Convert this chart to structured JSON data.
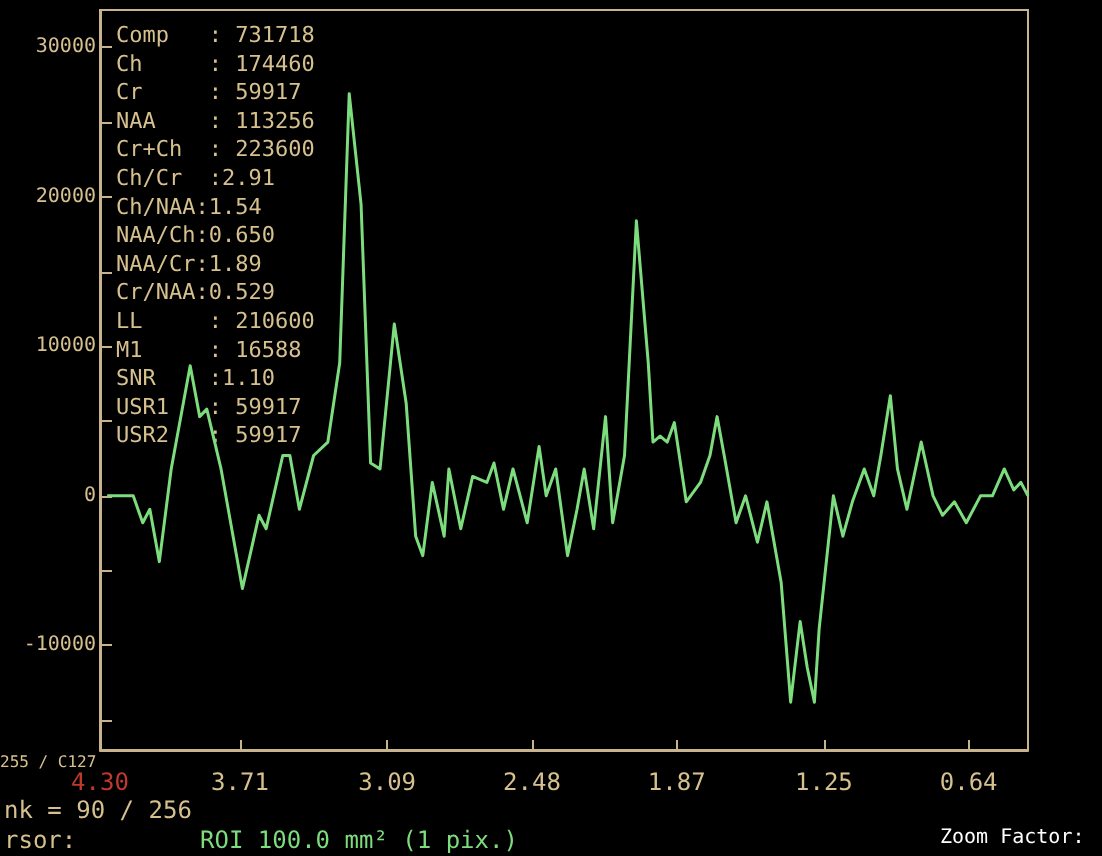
{
  "chart_data": {
    "type": "line",
    "x": [
      4.27,
      4.16,
      4.12,
      4.09,
      4.05,
      4.0,
      3.92,
      3.88,
      3.85,
      3.79,
      3.7,
      3.63,
      3.6,
      3.53,
      3.5,
      3.46,
      3.4,
      3.34,
      3.29,
      3.25,
      3.2,
      3.16,
      3.12,
      3.06,
      3.01,
      2.97,
      2.94,
      2.9,
      2.85,
      2.83,
      2.78,
      2.73,
      2.67,
      2.64,
      2.6,
      2.56,
      2.5,
      2.45,
      2.42,
      2.38,
      2.33,
      2.29,
      2.26,
      2.22,
      2.17,
      2.14,
      2.09,
      2.04,
      1.99,
      1.97,
      1.94,
      1.91,
      1.88,
      1.83,
      1.77,
      1.73,
      1.7,
      1.67,
      1.62,
      1.58,
      1.53,
      1.49,
      1.43,
      1.39,
      1.35,
      1.32,
      1.29,
      1.27,
      1.21,
      1.17,
      1.13,
      1.08,
      1.04,
      1.01,
      0.97,
      0.94,
      0.9,
      0.84,
      0.79,
      0.75,
      0.7,
      0.65,
      0.59,
      0.54,
      0.49,
      0.45,
      0.42,
      0.39
    ],
    "series": [
      {
        "color": "#7ddc7d",
        "values": [
          0,
          0,
          -1800,
          -900,
          -4400,
          1800,
          8700,
          5300,
          5800,
          1800,
          -6200,
          -1300,
          -2200,
          2700,
          2700,
          -900,
          2700,
          3600,
          8900,
          26900,
          19500,
          2200,
          1800,
          11500,
          6200,
          -2700,
          -4000,
          900,
          -2700,
          1800,
          -2200,
          1300,
          900,
          2200,
          -900,
          1800,
          -1800,
          3300,
          0,
          1800,
          -4000,
          -900,
          1800,
          -2200,
          5300,
          -1800,
          2700,
          18400,
          8900,
          3600,
          4000,
          3600,
          4900,
          -400,
          900,
          2700,
          5300,
          2700,
          -1800,
          0,
          -3100,
          -400,
          -5800,
          -13800,
          -8400,
          -11500,
          -13800,
          -8900,
          0,
          -2700,
          -400,
          1800,
          0,
          2700,
          6700,
          1800,
          -900,
          3600,
          0,
          -1300,
          -400,
          -1800,
          0,
          0,
          1800,
          400,
          900,
          0
        ]
      }
    ],
    "xlim": [
      4.3,
      0.39
    ],
    "xticks": [
      {
        "value": 4.3,
        "label": "4.30"
      },
      3.71,
      3.09,
      2.48,
      1.87,
      1.25,
      0.64
    ],
    "ylim": [
      -17000,
      32500
    ],
    "yticks": [
      {
        "value": -15000,
        "label": null
      },
      -10000,
      {
        "value": -5000,
        "label": null
      },
      0,
      {
        "value": 5000,
        "label": null
      },
      10000,
      {
        "value": 15000,
        "label": null
      },
      20000,
      {
        "value": 25000,
        "label": null
      },
      30000
    ],
    "marker": "none",
    "line_style": "solid",
    "annotations": [
      "Comp   : 731718",
      "Ch     : 174460",
      "Cr     : 59917",
      "NAA    : 113256",
      "Cr+Ch  : 223600",
      "Ch/Cr  :2.91",
      "Ch/NAA:1.54",
      "NAA/Ch:0.650",
      "NAA/Cr:1.89",
      "Cr/NAA:0.529",
      "LL     : 210600",
      "M1     : 16588",
      "SNR    :1.10",
      "USR1   : 59917",
      "USR2   : 59917",
      "255 / C127",
      "nk = 90 / 256",
      "rsor:",
      "ROI 100.0 mm² (1 pix.)",
      "Zoom Factor:"
    ]
  }
}
